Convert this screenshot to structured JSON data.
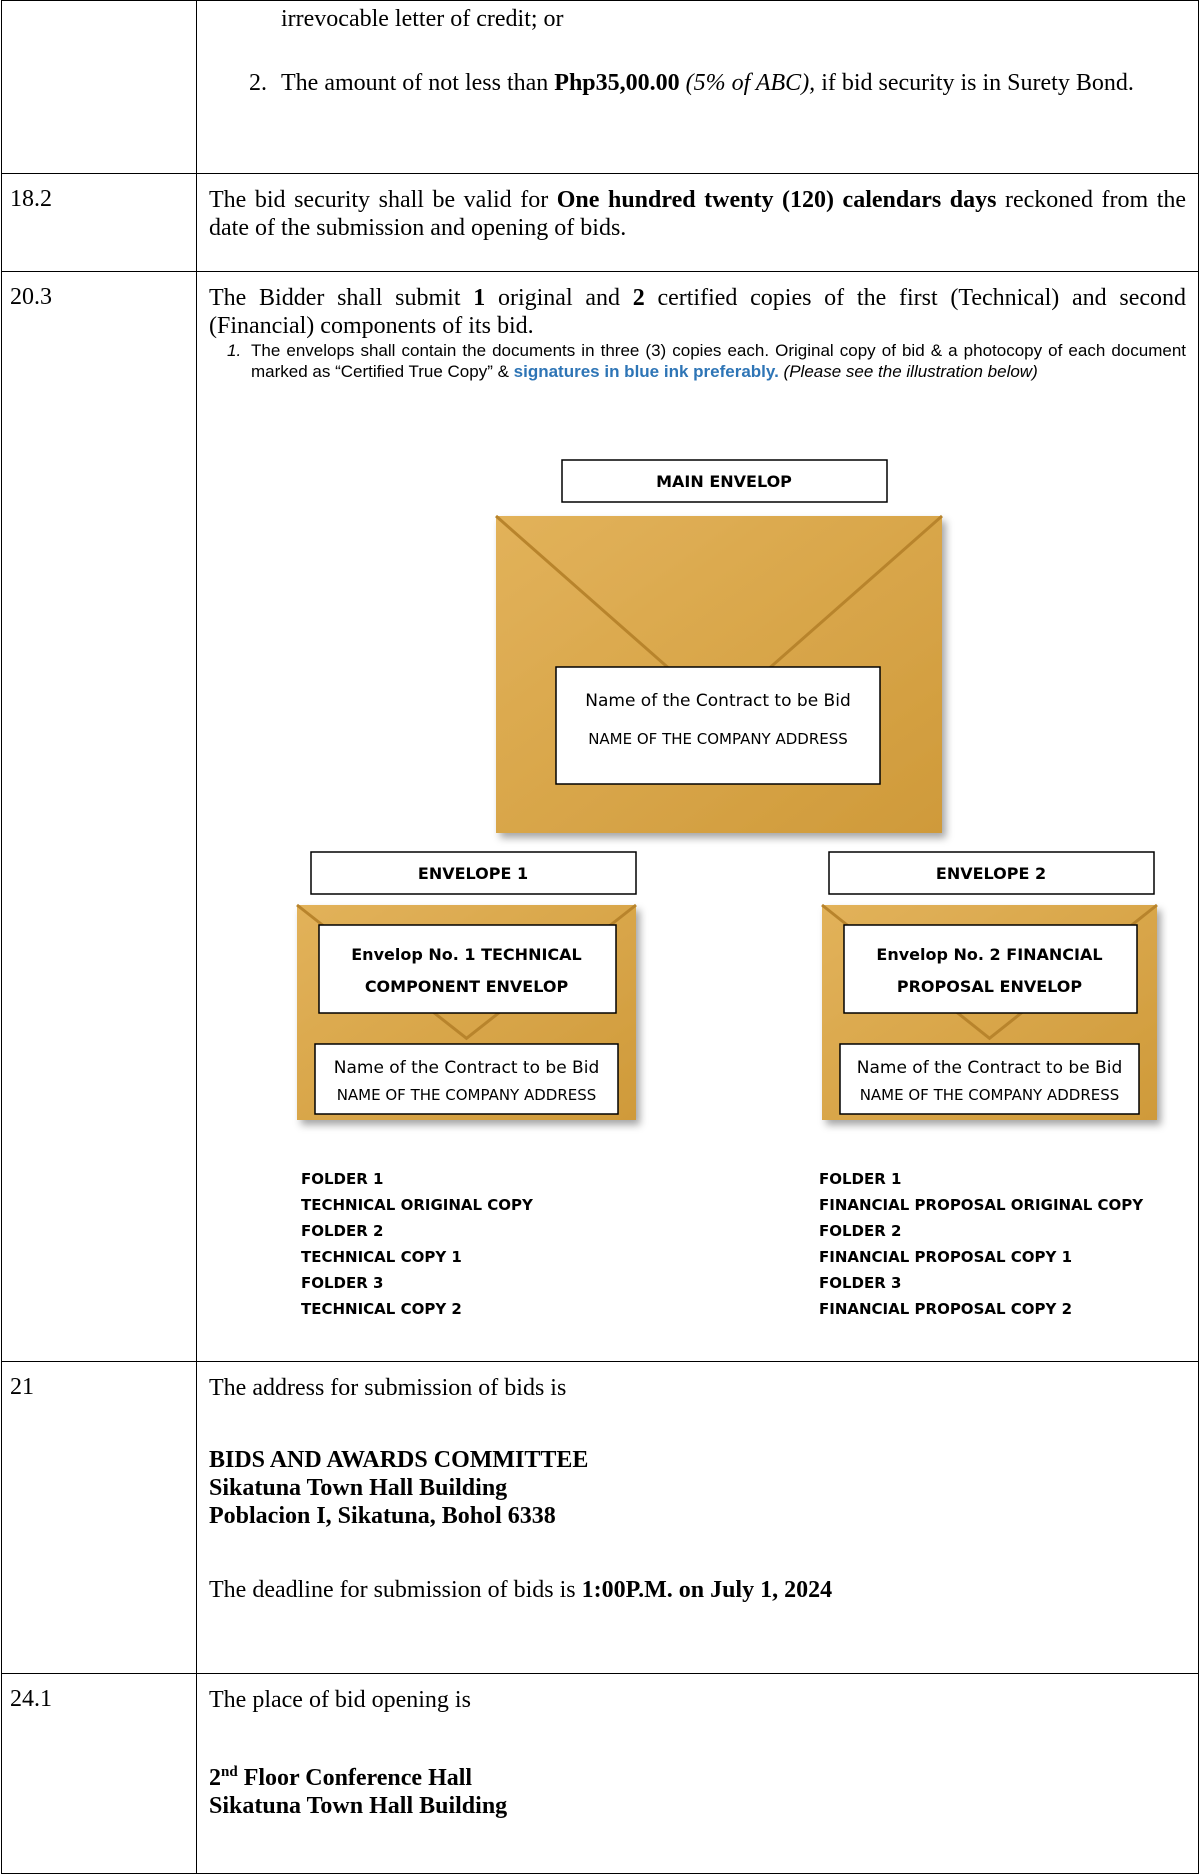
{
  "rows": [
    {
      "continuation": "irrevocable letter of credit; or",
      "item_marker": "2.",
      "item_text_1": "The amount of not less than",
      "item_amount": "Php35,00.00",
      "item_note": "(5% of ABC),",
      "item_text_2": "if bid security is in Surety Bond."
    },
    {
      "clause": "18.2",
      "text_1": "The bid security shall be valid for",
      "bold_1": "One hundred twenty (120) calendars days",
      "text_2": "reckoned from the date of the submission and opening of bids."
    },
    {
      "clause": "20.3",
      "text_1": "The Bidder shall submit",
      "bold_1": "1",
      "text_2": "original and",
      "bold_2": "2",
      "text_3": "certified copies of the first (Technical) and second (Financial) components of its bid.",
      "note_marker": "1.",
      "note_text": "The envelops shall contain the documents in three (3) copies each. Original copy of bid & a photocopy of each document marked as “Certified True Copy” &",
      "note_highlight": "signatures in blue ink preferably.",
      "note_italic": "(Please see the illustration below)",
      "illustration": {
        "main_label": "MAIN ENVELOP",
        "main_address": [
          "Name of the Contract to be Bid",
          "NAME OF THE COMPANY ADDRESS"
        ],
        "envelopes": [
          {
            "label": "ENVELOPE 1",
            "title": [
              "Envelop No. 1 TECHNICAL",
              "COMPONENT ENVELOP"
            ],
            "address": [
              "Name of the Contract to be Bid",
              "NAME OF THE COMPANY ADDRESS"
            ],
            "folders": [
              "FOLDER 1",
              "TECHNICAL ORIGINAL COPY",
              "FOLDER 2",
              "TECHNICAL COPY 1",
              "FOLDER 3",
              "TECHNICAL COPY 2"
            ]
          },
          {
            "label": "ENVELOPE 2",
            "title": [
              "Envelop No. 2 FINANCIAL",
              "PROPOSAL ENVELOP"
            ],
            "address": [
              "Name of the Contract to be Bid",
              "NAME OF THE COMPANY ADDRESS"
            ],
            "folders": [
              "FOLDER 1",
              "FINANCIAL PROPOSAL ORIGINAL COPY",
              "FOLDER 2",
              "FINANCIAL PROPOSAL COPY 1",
              "FOLDER 3",
              "FINANCIAL PROPOSAL COPY 2"
            ]
          }
        ]
      }
    },
    {
      "clause": "21",
      "intro": "The address for submission of bids is",
      "address": [
        "BIDS AND AWARDS COMMITTEE",
        "Sikatuna Town Hall Building",
        "Poblacion I, Sikatuna, Bohol 6338"
      ],
      "deadline_text": "The deadline for submission of bids is",
      "deadline_bold": "1:00P.M. on July 1, 2024"
    },
    {
      "clause": "24.1",
      "intro": "The place of bid opening is",
      "floor_number": "2",
      "floor_suffix": "nd",
      "floor_rest": "Floor Conference Hall",
      "building": "Sikatuna Town Hall Building"
    }
  ]
}
